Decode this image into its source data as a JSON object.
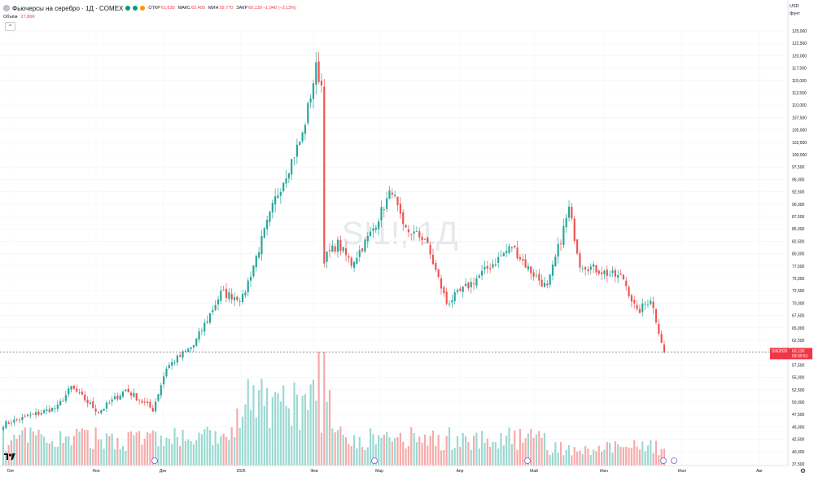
{
  "header": {
    "title": "Фьючерсы на серебро · 1Д · COMEX",
    "open_label": "ОТКР",
    "open_value": "61,630",
    "high_label": "МАКС",
    "high_value": "62,405",
    "low_label": "МИН",
    "low_value": "59,770",
    "close_label": "ЗАКР",
    "close_value": "60,130",
    "change": "−1,940 (−3,13%)",
    "volume_label": "Объём",
    "volume_value": "27,86K",
    "collapse_icon": "chevron-up-icon",
    "status_colors": [
      "#089981",
      "#089981",
      "#ff9800"
    ]
  },
  "currency": {
    "code": "USD",
    "unit": "фунт"
  },
  "watermark": "SI1!, 1Д",
  "price_axis": {
    "labels": [
      "125,000",
      "122,500",
      "120,000",
      "117,500",
      "115,000",
      "112,500",
      "110,000",
      "107,500",
      "105,000",
      "102,500",
      "100,000",
      "97,500",
      "95,000",
      "92,500",
      "90,000",
      "87,500",
      "85,000",
      "82,500",
      "80,000",
      "77,500",
      "75,000",
      "72,500",
      "70,000",
      "67,500",
      "65,000",
      "62,500",
      "57,500",
      "55,000",
      "52,500",
      "50,000",
      "47,500",
      "45,000",
      "42,500",
      "40,000",
      "37,500"
    ],
    "range": [
      37500,
      125000
    ]
  },
  "price_marker": {
    "symbol": "SIN2026",
    "price": "60,130",
    "countdown": "09:30:51",
    "color": "#f23645"
  },
  "time_axis": {
    "labels": [
      "Окт",
      "Ноя",
      "Дек",
      "2026",
      "Фев",
      "Мар",
      "Апр",
      "Май",
      "Июн",
      "Июл",
      "Авг"
    ]
  },
  "colors": {
    "up": "#26a69a",
    "down": "#ef5350",
    "up_volume": "#9ad9d1",
    "down_volume": "#f7aaa9",
    "grid": "#f2f3f5",
    "axis_text": "#131722",
    "event_marker": "#7e57c2"
  },
  "chart_data": {
    "type": "candlestick",
    "x_labels": [
      "Окт",
      "Ноя",
      "Дек",
      "2026",
      "Фев",
      "Мар",
      "Апр",
      "Май",
      "Июн",
      "Июл",
      "Авг"
    ],
    "ylim": [
      37500,
      125000
    ],
    "anchors_close": [
      [
        0,
        45500
      ],
      [
        20,
        49000
      ],
      [
        25,
        53000
      ],
      [
        35,
        48000
      ],
      [
        45,
        52500
      ],
      [
        55,
        48500
      ],
      [
        60,
        57000
      ],
      [
        70,
        61500
      ],
      [
        80,
        72000
      ],
      [
        88,
        71000
      ],
      [
        100,
        91000
      ],
      [
        110,
        104000
      ],
      [
        115,
        117500
      ],
      [
        117,
        114000
      ],
      [
        118,
        79000
      ],
      [
        123,
        82000
      ],
      [
        128,
        78000
      ],
      [
        135,
        84000
      ],
      [
        143,
        93000
      ],
      [
        147,
        85000
      ],
      [
        155,
        83000
      ],
      [
        163,
        70000
      ],
      [
        172,
        74000
      ],
      [
        180,
        78000
      ],
      [
        187,
        81500
      ],
      [
        193,
        77000
      ],
      [
        200,
        73000
      ],
      [
        208,
        89000
      ],
      [
        212,
        78000
      ],
      [
        222,
        76000
      ],
      [
        228,
        75000
      ],
      [
        233,
        68000
      ],
      [
        238,
        71000
      ],
      [
        243,
        60130
      ]
    ],
    "volume_last": 27860,
    "last": {
      "open": 61630,
      "high": 62405,
      "low": 59770,
      "close": 60130
    }
  }
}
